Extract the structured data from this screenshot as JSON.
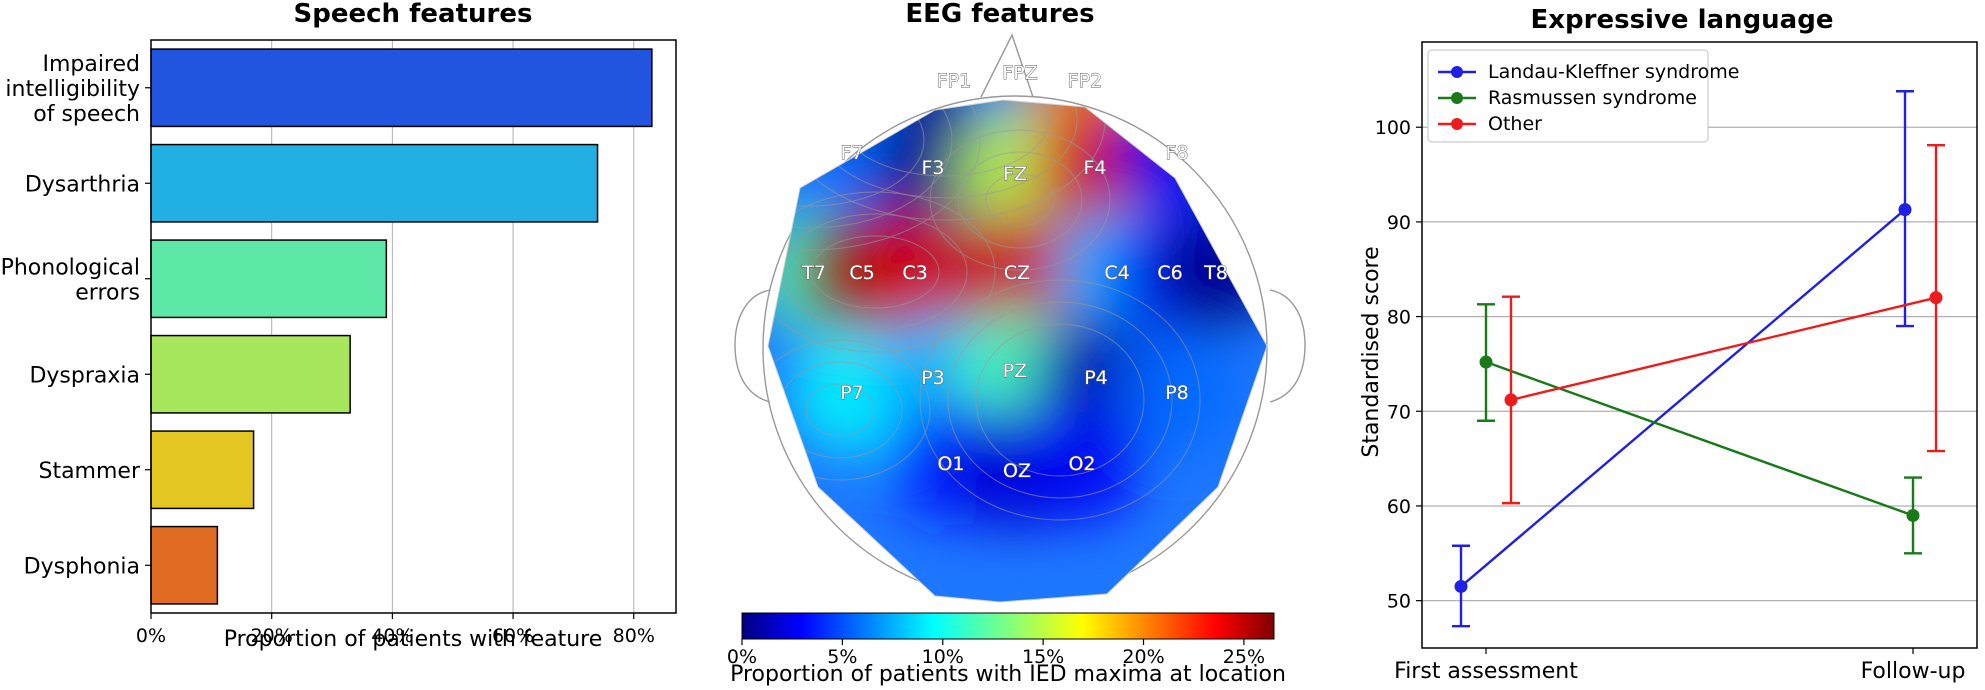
{
  "chart_data": [
    {
      "type": "bar",
      "orientation": "horizontal",
      "title": "Speech features",
      "xlabel": "Proportion of patients with feature",
      "ylabel": "",
      "xlim": [
        0,
        0.87
      ],
      "xticks": [
        0,
        0.2,
        0.4,
        0.6,
        0.8
      ],
      "xtick_labels": [
        "0%",
        "20%",
        "40%",
        "60%",
        "80%"
      ],
      "categories": [
        [
          "Impaired",
          "intelligibility",
          "of speech"
        ],
        [
          "Dysarthria"
        ],
        [
          "Phonological",
          "errors"
        ],
        [
          "Dyspraxia"
        ],
        [
          "Stammer"
        ],
        [
          "Dysphonia"
        ]
      ],
      "values": [
        0.83,
        0.74,
        0.39,
        0.33,
        0.17,
        0.11
      ],
      "colors": [
        "#2155e0",
        "#22b0e3",
        "#5de8a8",
        "#a8e65e",
        "#e3c622",
        "#e06c22"
      ],
      "grid": "x"
    },
    {
      "type": "heatmap",
      "subtype": "scalp-topography",
      "title": "EEG features",
      "colorbar_label": "Proportion of patients with IED maxima at location",
      "colorbar_ticks": [
        "0%",
        "5%",
        "10%",
        "15%",
        "20%",
        "25%"
      ],
      "colorbar_range": [
        0,
        0.265
      ],
      "colormap": "jet",
      "electrodes": [
        {
          "label": "FP1",
          "value": 0.0
        },
        {
          "label": "FPZ",
          "value": 0.07
        },
        {
          "label": "FP2",
          "value": 0.2
        },
        {
          "label": "F7",
          "value": 0.06
        },
        {
          "label": "F3",
          "value": 0.0
        },
        {
          "label": "FZ",
          "value": 0.15
        },
        {
          "label": "F4",
          "value": 0.24
        },
        {
          "label": "F8",
          "value": 0.03
        },
        {
          "label": "T7",
          "value": 0.12
        },
        {
          "label": "C5",
          "value": 0.265
        },
        {
          "label": "C3",
          "value": 0.24
        },
        {
          "label": "CZ",
          "value": 0.24
        },
        {
          "label": "C4",
          "value": 0.08
        },
        {
          "label": "C6",
          "value": 0.04
        },
        {
          "label": "T8",
          "value": 0.0
        },
        {
          "label": "P7",
          "value": 0.1
        },
        {
          "label": "P3",
          "value": 0.08
        },
        {
          "label": "PZ",
          "value": 0.12
        },
        {
          "label": "P4",
          "value": 0.01
        },
        {
          "label": "P8",
          "value": 0.06
        },
        {
          "label": "O1",
          "value": 0.04
        },
        {
          "label": "OZ",
          "value": 0.02
        },
        {
          "label": "O2",
          "value": 0.03
        }
      ]
    },
    {
      "type": "line",
      "title": "Expressive language",
      "xlabel": "",
      "ylabel": "Standardised score",
      "categories": [
        "First assessment",
        "Follow-up"
      ],
      "ylim": [
        45,
        109
      ],
      "yticks": [
        50,
        60,
        70,
        80,
        90,
        100
      ],
      "grid": "y",
      "legend": "top-left",
      "series": [
        {
          "name": "Landau-Kleffner syndrome",
          "color": "#1f1fe6",
          "values": [
            51.5,
            91.3
          ],
          "err_low": [
            47.3,
            79.0
          ],
          "err_high": [
            55.8,
            103.8
          ]
        },
        {
          "name": "Rasmussen syndrome",
          "color": "#1a7a1a",
          "values": [
            75.2,
            59.0
          ],
          "err_low": [
            69.0,
            55.0
          ],
          "err_high": [
            81.3,
            63.0
          ]
        },
        {
          "name": "Other",
          "color": "#ec1c1c",
          "values": [
            71.2,
            82.0
          ],
          "err_low": [
            60.3,
            65.8
          ],
          "err_high": [
            82.1,
            98.1
          ]
        }
      ]
    }
  ]
}
